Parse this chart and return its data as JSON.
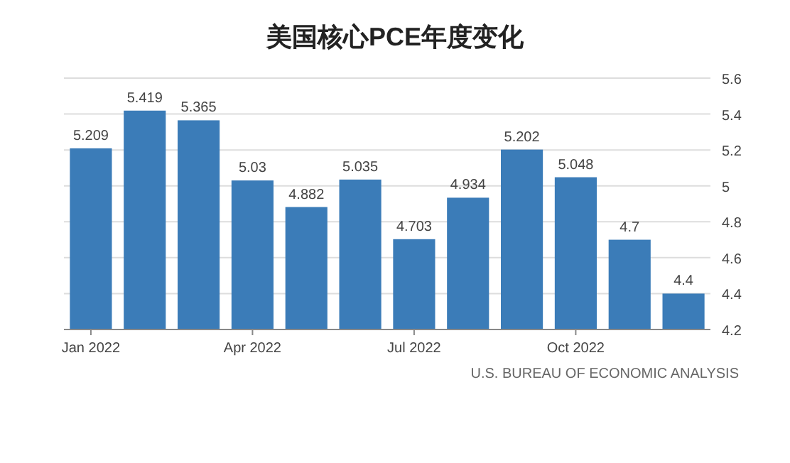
{
  "chart_data": {
    "type": "bar",
    "title": "美国核心PCE年度变化",
    "categories": [
      "Jan 2022",
      null,
      null,
      "Apr 2022",
      null,
      null,
      "Jul 2022",
      null,
      null,
      "Oct 2022",
      null,
      null
    ],
    "values": [
      5.209,
      5.419,
      5.365,
      5.03,
      4.882,
      5.035,
      4.703,
      4.934,
      5.202,
      5.048,
      4.7,
      4.4
    ],
    "color": "#3b7cb8",
    "ylim": [
      4.2,
      5.6
    ],
    "yticks": [
      4.2,
      4.4,
      4.6,
      4.8,
      5,
      5.2,
      5.4,
      5.6
    ],
    "grid": "y",
    "data_labels": true,
    "annotations": [
      "U.S. BUREAU OF ECONOMIC ANALYSIS"
    ]
  }
}
